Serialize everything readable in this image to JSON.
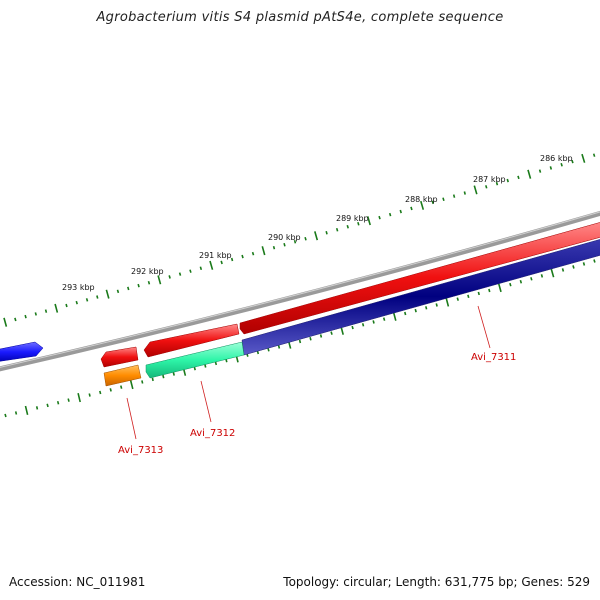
{
  "title": "Agrobacterium vitis S4 plasmid pAtS4e, complete sequence",
  "footer": {
    "accession": "Accession: NC_011981",
    "summary": "Topology: circular; Length: 631,775 bp; Genes: 529"
  },
  "colors": {
    "backbone": "#808080",
    "tick": "#1a7a1a",
    "label_line": "#d02020",
    "label_text": "#cc0000"
  },
  "ruler": {
    "labels": [
      "286 kbp",
      "287 kbp",
      "288 kbp",
      "289 kbp",
      "290 kbp",
      "291 kbp",
      "292 kbp",
      "293 kbp"
    ]
  },
  "genes": [
    {
      "name": "Avi_7311",
      "color": "#f20f0f"
    },
    {
      "name": "Avi_7312",
      "color": "#2ef5a8"
    },
    {
      "name": "Avi_7313",
      "color": "#ff8c00"
    }
  ],
  "features": [
    {
      "color": "#f20f0f"
    },
    {
      "color": "#f20f0f"
    },
    {
      "color": "#000080"
    },
    {
      "color": "#1a1aff"
    }
  ]
}
